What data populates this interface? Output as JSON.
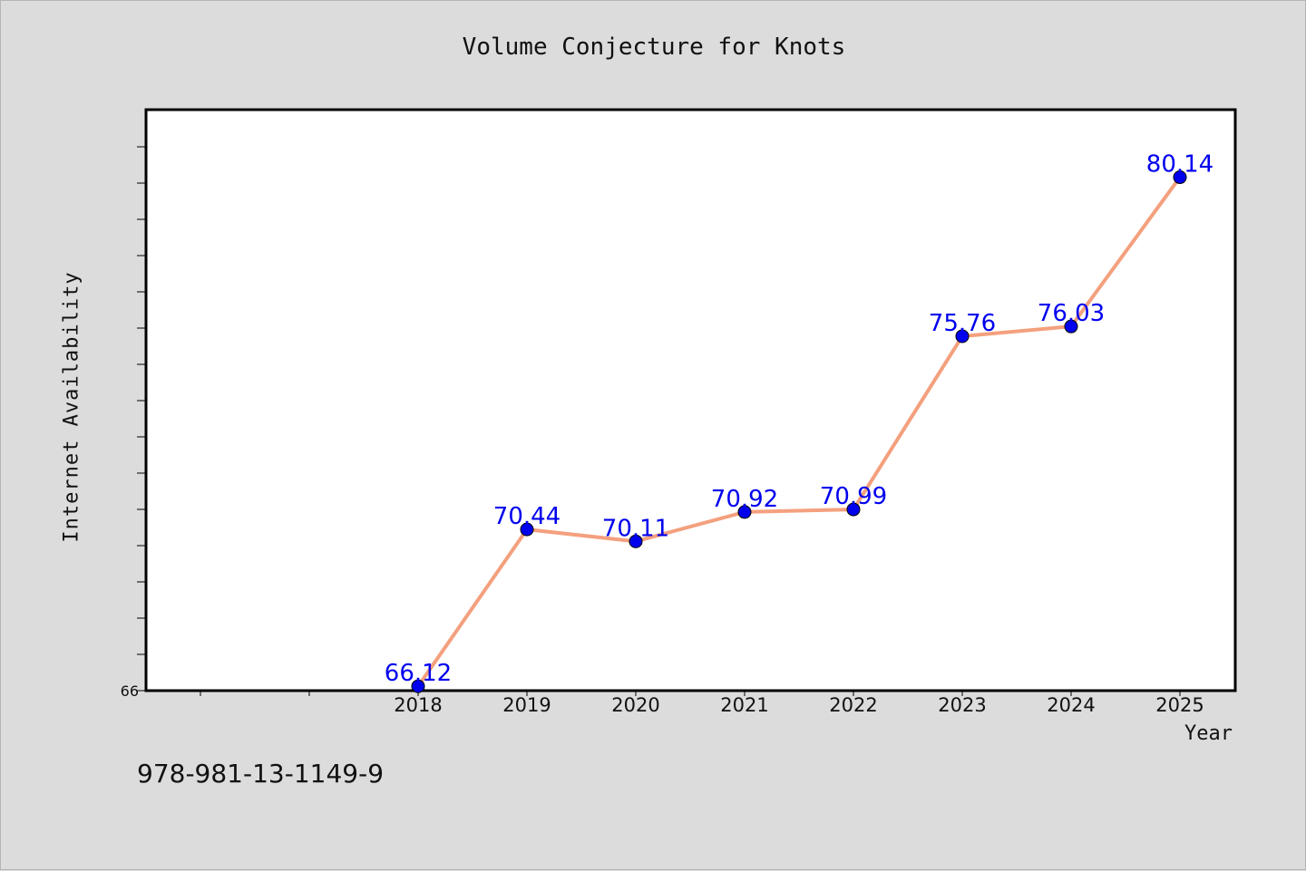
{
  "chart_data": {
    "type": "line",
    "title": "Volume Conjecture for Knots",
    "xlabel": "Year",
    "ylabel": "Internet Availability",
    "categories": [
      "2018",
      "2019",
      "2020",
      "2021",
      "2022",
      "2023",
      "2024",
      "2025"
    ],
    "series": [
      {
        "values": [
          66.12,
          70.44,
          70.11,
          70.92,
          70.99,
          75.76,
          76.03,
          80.14
        ],
        "labels": [
          "66.12",
          "70.44",
          "70.11",
          "70.92",
          "70.99",
          "75.76",
          "76.03",
          "80.14"
        ]
      }
    ],
    "ylim": [
      66,
      82
    ],
    "y_tick_labels": [
      "66"
    ],
    "grid": false,
    "line_color": "#f4a07e",
    "marker_color": "#0000ee",
    "label_color": "#0000ee"
  },
  "footer": {
    "code": "978-981-13-1149-9"
  }
}
